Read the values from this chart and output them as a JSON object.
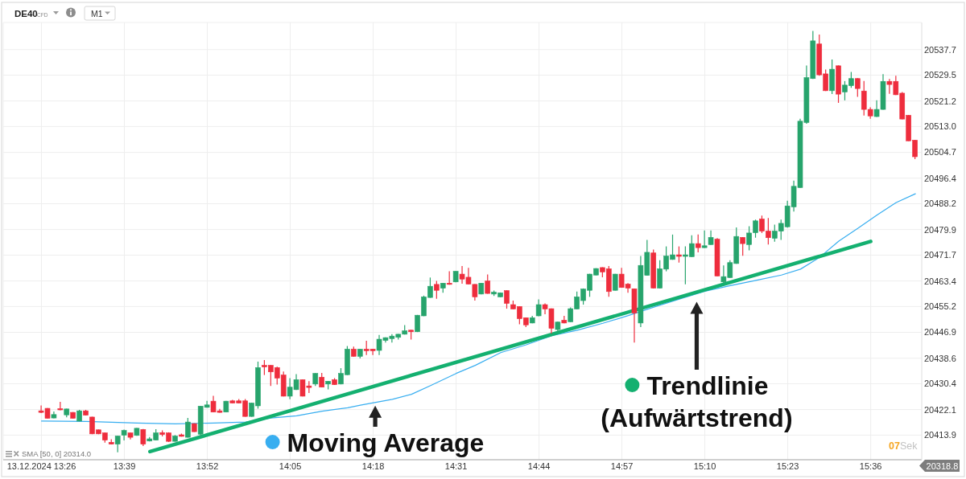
{
  "chart_data": {
    "type": "candlestick",
    "title": "DE40",
    "subtitle": "CFD",
    "x": [
      "2024-12-13T13:26",
      "2024-12-13T13:27",
      "2024-12-13T13:28",
      "2024-12-13T13:29",
      "2024-12-13T13:30",
      "2024-12-13T13:31",
      "2024-12-13T13:32",
      "2024-12-13T13:33",
      "2024-12-13T13:34",
      "2024-12-13T13:35",
      "2024-12-13T13:36",
      "2024-12-13T13:37",
      "2024-12-13T13:38",
      "2024-12-13T13:39",
      "2024-12-13T13:40",
      "2024-12-13T13:41",
      "2024-12-13T13:42",
      "2024-12-13T13:43",
      "2024-12-13T13:44",
      "2024-12-13T13:45",
      "2024-12-13T13:46",
      "2024-12-13T13:47",
      "2024-12-13T13:48",
      "2024-12-13T13:49",
      "2024-12-13T13:50",
      "2024-12-13T13:51",
      "2024-12-13T13:52",
      "2024-12-13T13:53",
      "2024-12-13T13:54",
      "2024-12-13T13:55",
      "2024-12-13T13:56",
      "2024-12-13T13:57",
      "2024-12-13T13:58",
      "2024-12-13T13:59",
      "2024-12-13T14:00",
      "2024-12-13T14:01",
      "2024-12-13T14:02",
      "2024-12-13T14:03",
      "2024-12-13T14:04",
      "2024-12-13T14:05",
      "2024-12-13T14:06",
      "2024-12-13T14:07",
      "2024-12-13T14:08",
      "2024-12-13T14:09",
      "2024-12-13T14:10",
      "2024-12-13T14:11",
      "2024-12-13T14:12",
      "2024-12-13T14:13",
      "2024-12-13T14:14",
      "2024-12-13T14:15",
      "2024-12-13T14:16",
      "2024-12-13T14:17",
      "2024-12-13T14:18",
      "2024-12-13T14:19",
      "2024-12-13T14:20",
      "2024-12-13T14:21",
      "2024-12-13T14:22",
      "2024-12-13T14:23",
      "2024-12-13T14:24",
      "2024-12-13T14:25",
      "2024-12-13T14:26",
      "2024-12-13T14:27",
      "2024-12-13T14:28",
      "2024-12-13T14:29",
      "2024-12-13T14:30",
      "2024-12-13T14:31",
      "2024-12-13T14:32",
      "2024-12-13T14:33",
      "2024-12-13T14:34",
      "2024-12-13T14:35",
      "2024-12-13T14:36",
      "2024-12-13T14:37",
      "2024-12-13T14:38",
      "2024-12-13T14:39",
      "2024-12-13T14:40",
      "2024-12-13T14:41",
      "2024-12-13T14:42",
      "2024-12-13T14:43",
      "2024-12-13T14:44",
      "2024-12-13T14:45",
      "2024-12-13T14:46",
      "2024-12-13T14:47",
      "2024-12-13T14:48",
      "2024-12-13T14:49",
      "2024-12-13T14:50",
      "2024-12-13T14:51",
      "2024-12-13T14:52",
      "2024-12-13T14:53",
      "2024-12-13T14:54",
      "2024-12-13T14:55",
      "2024-12-13T14:56",
      "2024-12-13T14:57",
      "2024-12-13T14:58",
      "2024-12-13T14:59",
      "2024-12-13T15:00",
      "2024-12-13T15:01",
      "2024-12-13T15:02",
      "2024-12-13T15:03",
      "2024-12-13T15:04",
      "2024-12-13T15:05",
      "2024-12-13T15:06",
      "2024-12-13T15:07",
      "2024-12-13T15:08",
      "2024-12-13T15:09",
      "2024-12-13T15:10",
      "2024-12-13T15:11",
      "2024-12-13T15:12",
      "2024-12-13T15:13",
      "2024-12-13T15:14",
      "2024-12-13T15:15",
      "2024-12-13T15:16",
      "2024-12-13T15:17",
      "2024-12-13T15:18",
      "2024-12-13T15:19",
      "2024-12-13T15:20",
      "2024-12-13T15:21",
      "2024-12-13T15:22",
      "2024-12-13T15:23",
      "2024-12-13T15:24",
      "2024-12-13T15:25",
      "2024-12-13T15:26",
      "2024-12-13T15:27",
      "2024-12-13T15:28",
      "2024-12-13T15:29",
      "2024-12-13T15:30",
      "2024-12-13T15:31",
      "2024-12-13T15:32",
      "2024-12-13T15:33",
      "2024-12-13T15:34",
      "2024-12-13T15:35",
      "2024-12-13T15:36",
      "2024-12-13T15:37",
      "2024-12-13T15:38",
      "2024-12-13T15:39",
      "2024-12-13T15:40",
      "2024-12-13T15:41",
      "2024-12-13T15:42",
      "2024-12-13T15:43"
    ],
    "ohlc": [
      [
        20421.7,
        20423.4,
        20421.0,
        20421.2
      ],
      [
        20422.5,
        20422.6,
        20419.2,
        20419.3
      ],
      [
        20419.4,
        20421.5,
        20419.3,
        20420.5
      ],
      [
        20422.4,
        20424.6,
        20421.9,
        20422.0
      ],
      [
        20420.4,
        20422.4,
        20419.6,
        20422.3
      ],
      [
        20421.2,
        20421.3,
        20419.2,
        20419.3
      ],
      [
        20418.4,
        20422.0,
        20418.3,
        20421.7
      ],
      [
        20421.7,
        20422.0,
        20420.2,
        20420.3
      ],
      [
        20419.7,
        20419.8,
        20414.2,
        20414.3
      ],
      [
        20415.6,
        20415.7,
        20414.2,
        20414.3
      ],
      [
        20414.6,
        20414.7,
        20411.5,
        20412.3
      ],
      [
        20411.6,
        20412.6,
        20410.9,
        20411.0
      ],
      [
        20411.0,
        20413.7,
        20408.4,
        20413.6
      ],
      [
        20413.9,
        20415.7,
        20412.2,
        20415.4
      ],
      [
        20414.6,
        20414.7,
        20412.5,
        20413.2
      ],
      [
        20413.8,
        20416.2,
        20413.7,
        20416.1
      ],
      [
        20415.7,
        20415.9,
        20410.4,
        20411.0
      ],
      [
        20412.0,
        20413.3,
        20411.9,
        20412.7
      ],
      [
        20412.3,
        20415.8,
        20412.2,
        20414.6
      ],
      [
        20414.7,
        20415.4,
        20413.5,
        20414.1
      ],
      [
        20414.6,
        20414.8,
        20411.7,
        20411.9
      ],
      [
        20411.9,
        20413.9,
        20411.8,
        20413.6
      ],
      [
        20414.0,
        20414.4,
        20413.4,
        20413.5
      ],
      [
        20413.2,
        20419.4,
        20413.1,
        20418.1
      ],
      [
        20417.6,
        20417.7,
        20414.9,
        20415.0
      ],
      [
        20414.2,
        20423.3,
        20413.5,
        20423.2
      ],
      [
        20422.8,
        20424.9,
        20422.7,
        20423.6
      ],
      [
        20424.8,
        20426.5,
        20421.2,
        20421.3
      ],
      [
        20421.7,
        20422.3,
        20421.1,
        20421.2
      ],
      [
        20421.3,
        20424.9,
        20421.2,
        20424.8
      ],
      [
        20424.9,
        20425.2,
        20424.1,
        20424.2
      ],
      [
        20424.9,
        20425.5,
        20424.1,
        20424.2
      ],
      [
        20424.9,
        20425.5,
        20419.8,
        20419.9
      ],
      [
        20419.9,
        20424.3,
        20419.8,
        20424.2
      ],
      [
        20423.3,
        20437.5,
        20422.4,
        20435.6
      ],
      [
        20436.3,
        20438.0,
        20433.2,
        20435.8
      ],
      [
        20436.3,
        20436.4,
        20429.7,
        20434.2
      ],
      [
        20435.6,
        20435.9,
        20430.1,
        20432.2
      ],
      [
        20433.2,
        20434.3,
        20426.3,
        20426.4
      ],
      [
        20426.4,
        20432.2,
        20425.4,
        20429.3
      ],
      [
        20428.5,
        20433.5,
        20428.4,
        20431.7
      ],
      [
        20431.7,
        20431.8,
        20426.3,
        20426.4
      ],
      [
        20429.7,
        20431.2,
        20427.4,
        20429.2
      ],
      [
        20430.3,
        20433.8,
        20429.7,
        20433.7
      ],
      [
        20432.5,
        20433.9,
        20429.2,
        20429.3
      ],
      [
        20430.3,
        20431.3,
        20428.6,
        20431.2
      ],
      [
        20431.7,
        20432.2,
        20430.0,
        20430.1
      ],
      [
        20430.3,
        20435.4,
        20430.2,
        20433.7
      ],
      [
        20433.3,
        20442.5,
        20433.2,
        20441.5
      ],
      [
        20441.5,
        20442.3,
        20439.1,
        20439.2
      ],
      [
        20439.2,
        20441.6,
        20438.5,
        20441.5
      ],
      [
        20441.5,
        20444.2,
        20439.6,
        20441.0
      ],
      [
        20441.5,
        20441.6,
        20439.6,
        20441.0
      ],
      [
        20441.1,
        20446.1,
        20439.6,
        20444.7
      ],
      [
        20444.3,
        20445.3,
        20443.6,
        20445.2
      ],
      [
        20444.9,
        20446.3,
        20443.6,
        20445.7
      ],
      [
        20445.3,
        20446.4,
        20444.6,
        20446.3
      ],
      [
        20446.3,
        20449.2,
        20446.2,
        20447.4
      ],
      [
        20447.6,
        20447.7,
        20444.6,
        20447.1
      ],
      [
        20447.1,
        20452.5,
        20447.0,
        20452.4
      ],
      [
        20452.2,
        20458.7,
        20452.1,
        20458.3
      ],
      [
        20458.1,
        20464.5,
        20458.0,
        20461.7
      ],
      [
        20462.3,
        20463.4,
        20457.7,
        20460.4
      ],
      [
        20461.1,
        20462.8,
        20459.6,
        20462.7
      ],
      [
        20462.7,
        20466.5,
        20462.2,
        20462.3
      ],
      [
        20463.1,
        20466.6,
        20463.0,
        20466.5
      ],
      [
        20465.6,
        20468.2,
        20462.5,
        20464.0
      ],
      [
        20464.6,
        20467.6,
        20462.3,
        20462.4
      ],
      [
        20462.3,
        20462.4,
        20457.1,
        20458.3
      ],
      [
        20459.2,
        20462.8,
        20459.1,
        20462.7
      ],
      [
        20463.4,
        20465.5,
        20459.3,
        20459.4
      ],
      [
        20459.2,
        20460.3,
        20458.6,
        20459.8
      ],
      [
        20458.3,
        20459.7,
        20458.2,
        20459.6
      ],
      [
        20460.3,
        20460.4,
        20454.5,
        20456.2
      ],
      [
        20455.8,
        20457.1,
        20454.3,
        20454.4
      ],
      [
        20455.2,
        20455.3,
        20449.5,
        20451.3
      ],
      [
        20451.6,
        20451.7,
        20448.6,
        20449.3
      ],
      [
        20449.9,
        20452.2,
        20449.8,
        20451.6
      ],
      [
        20452.2,
        20457.5,
        20452.1,
        20455.8
      ],
      [
        20455.8,
        20456.2,
        20452.7,
        20454.4
      ],
      [
        20454.5,
        20454.6,
        20446.5,
        20448.2
      ],
      [
        20447.8,
        20450.3,
        20447.0,
        20450.2
      ],
      [
        20450.8,
        20452.2,
        20449.8,
        20449.9
      ],
      [
        20450.3,
        20454.9,
        20450.2,
        20454.5
      ],
      [
        20454.4,
        20460.0,
        20454.3,
        20458.3
      ],
      [
        20457.1,
        20461.0,
        20455.8,
        20460.8
      ],
      [
        20460.4,
        20465.7,
        20458.3,
        20465.6
      ],
      [
        20465.3,
        20467.5,
        20465.2,
        20467.4
      ],
      [
        20467.7,
        20467.8,
        20464.6,
        20466.3
      ],
      [
        20467.3,
        20468.2,
        20458.3,
        20460.0
      ],
      [
        20460.4,
        20465.7,
        20460.3,
        20465.6
      ],
      [
        20465.6,
        20467.6,
        20461.2,
        20461.3
      ],
      [
        20462.4,
        20462.7,
        20459.6,
        20461.1
      ],
      [
        20460.9,
        20461.0,
        20443.6,
        20453.1
      ],
      [
        20449.9,
        20471.4,
        20448.6,
        20468.4
      ],
      [
        20465.2,
        20476.6,
        20465.1,
        20472.6
      ],
      [
        20472.4,
        20473.5,
        20461.0,
        20461.1
      ],
      [
        20461.1,
        20470.1,
        20461.0,
        20467.3
      ],
      [
        20467.2,
        20474.5,
        20466.5,
        20471.4
      ],
      [
        20470.3,
        20478.3,
        20470.2,
        20471.8
      ],
      [
        20471.8,
        20474.5,
        20469.3,
        20471.3
      ],
      [
        20471.3,
        20474.5,
        20462.3,
        20471.8
      ],
      [
        20471.2,
        20478.1,
        20471.1,
        20475.4
      ],
      [
        20475.4,
        20478.3,
        20472.6,
        20474.1
      ],
      [
        20474.1,
        20479.6,
        20474.0,
        20474.7
      ],
      [
        20475.1,
        20479.6,
        20475.0,
        20477.4
      ],
      [
        20476.8,
        20477.2,
        20464.9,
        20465.0
      ],
      [
        20463.1,
        20468.4,
        20462.5,
        20464.8
      ],
      [
        20464.5,
        20470.1,
        20464.4,
        20469.3
      ],
      [
        20469.0,
        20480.6,
        20468.9,
        20477.7
      ],
      [
        20477.4,
        20477.5,
        20471.5,
        20475.4
      ],
      [
        20475.1,
        20481.0,
        20473.2,
        20478.8
      ],
      [
        20478.9,
        20483.1,
        20477.3,
        20482.7
      ],
      [
        20483.3,
        20484.4,
        20478.8,
        20479.4
      ],
      [
        20479.4,
        20483.6,
        20475.1,
        20477.3
      ],
      [
        20477.1,
        20481.5,
        20476.0,
        20479.4
      ],
      [
        20479.4,
        20483.1,
        20476.6,
        20481.9
      ],
      [
        20480.8,
        20489.2,
        20480.5,
        20487.5
      ],
      [
        20487.2,
        20495.6,
        20485.7,
        20493.8
      ],
      [
        20493.4,
        20515.5,
        20493.3,
        20514.7
      ],
      [
        20514.3,
        20532.6,
        20513.9,
        20528.7
      ],
      [
        20528.4,
        20543.7,
        20528.3,
        20540.5
      ],
      [
        20539.5,
        20542.5,
        20529.3,
        20529.6
      ],
      [
        20529.9,
        20531.3,
        20524.4,
        20524.5
      ],
      [
        20524.5,
        20534.5,
        20523.4,
        20531.4
      ],
      [
        20532.5,
        20532.6,
        20520.6,
        20523.4
      ],
      [
        20524.1,
        20527.6,
        20521.4,
        20526.3
      ],
      [
        20526.1,
        20530.5,
        20525.4,
        20528.4
      ],
      [
        20528.4,
        20528.5,
        20522.5,
        20525.2
      ],
      [
        20524.4,
        20527.6,
        20516.5,
        20518.5
      ],
      [
        20518.5,
        20519.2,
        20515.5,
        20516.4
      ],
      [
        20516.2,
        20521.4,
        20516.1,
        20518.5
      ],
      [
        20518.5,
        20529.8,
        20518.4,
        20527.5
      ],
      [
        20527.5,
        20528.3,
        20523.5,
        20526.5
      ],
      [
        20527.5,
        20529.3,
        20523.1,
        20523.2
      ],
      [
        20523.7,
        20524.1,
        20515.3,
        20515.4
      ],
      [
        20516.6,
        20516.7,
        20508.3,
        20508.4
      ],
      [
        20508.6,
        20508.7,
        20502.5,
        20503.3
      ]
    ],
    "colors": [
      "#ee2d3d",
      "#ee2d3d",
      "#27a46c",
      "#ee2d3d",
      "#27a46c",
      "#ee2d3d",
      "#27a46c",
      "#ee2d3d",
      "#ee2d3d",
      "#ee2d3d",
      "#ee2d3d",
      "#ee2d3d",
      "#27a46c",
      "#27a46c",
      "#ee2d3d",
      "#27a46c",
      "#ee2d3d",
      "#27a46c",
      "#27a46c",
      "#ee2d3d",
      "#ee2d3d",
      "#27a46c",
      "#ee2d3d",
      "#27a46c",
      "#ee2d3d",
      "#27a46c",
      "#27a46c",
      "#ee2d3d",
      "#ee2d3d",
      "#27a46c",
      "#ee2d3d",
      "#ee2d3d",
      "#ee2d3d",
      "#27a46c",
      "#27a46c",
      "#ee2d3d",
      "#ee2d3d",
      "#ee2d3d",
      "#ee2d3d",
      "#27a46c",
      "#27a46c",
      "#ee2d3d",
      "#ee2d3d",
      "#27a46c",
      "#ee2d3d",
      "#27a46c",
      "#ee2d3d",
      "#27a46c",
      "#27a46c",
      "#ee2d3d",
      "#27a46c",
      "#ee2d3d",
      "#ee2d3d",
      "#27a46c",
      "#27a46c",
      "#27a46c",
      "#27a46c",
      "#27a46c",
      "#ee2d3d",
      "#27a46c",
      "#27a46c",
      "#27a46c",
      "#ee2d3d",
      "#27a46c",
      "#ee2d3d",
      "#27a46c",
      "#ee2d3d",
      "#ee2d3d",
      "#ee2d3d",
      "#27a46c",
      "#ee2d3d",
      "#27a46c",
      "#27a46c",
      "#ee2d3d",
      "#ee2d3d",
      "#ee2d3d",
      "#ee2d3d",
      "#27a46c",
      "#27a46c",
      "#ee2d3d",
      "#ee2d3d",
      "#27a46c",
      "#ee2d3d",
      "#27a46c",
      "#27a46c",
      "#27a46c",
      "#27a46c",
      "#27a46c",
      "#ee2d3d",
      "#ee2d3d",
      "#27a46c",
      "#ee2d3d",
      "#ee2d3d",
      "#ee2d3d",
      "#27a46c",
      "#27a46c",
      "#ee2d3d",
      "#27a46c",
      "#27a46c",
      "#27a46c",
      "#ee2d3d",
      "#27a46c",
      "#27a46c",
      "#ee2d3d",
      "#27a46c",
      "#27a46c",
      "#ee2d3d",
      "#27a46c",
      "#27a46c",
      "#27a46c",
      "#ee2d3d",
      "#27a46c",
      "#27a46c",
      "#ee2d3d",
      "#ee2d3d",
      "#27a46c",
      "#27a46c",
      "#27a46c",
      "#27a46c",
      "#27a46c",
      "#27a46c",
      "#27a46c",
      "#ee2d3d",
      "#ee2d3d",
      "#27a46c",
      "#ee2d3d",
      "#27a46c",
      "#27a46c",
      "#ee2d3d",
      "#ee2d3d",
      "#ee2d3d",
      "#27a46c",
      "#27a46c",
      "#ee2d3d",
      "#ee2d3d",
      "#ee2d3d",
      "#ee2d3d",
      "#ee2d3d"
    ],
    "series": [
      {
        "type": "line",
        "name": "Moving Average",
        "color": "#38aef0",
        "x": [
          "2024-12-13T13:26",
          "2024-12-13T13:33",
          "2024-12-13T13:41",
          "2024-12-13T13:47",
          "2024-12-13T13:53",
          "2024-12-13T13:58",
          "2024-12-13T14:02",
          "2024-12-13T14:06",
          "2024-12-13T14:10",
          "2024-12-13T14:14",
          "2024-12-13T14:16",
          "2024-12-13T14:21",
          "2024-12-13T14:24",
          "2024-12-13T14:27",
          "2024-12-13T14:31",
          "2024-12-13T14:34",
          "2024-12-13T14:38",
          "2024-12-13T14:42",
          "2024-12-13T14:46",
          "2024-12-13T14:50",
          "2024-12-13T14:54",
          "2024-12-13T14:58",
          "2024-12-13T15:02",
          "2024-12-13T15:06",
          "2024-12-13T15:10",
          "2024-12-13T15:14",
          "2024-12-13T15:18",
          "2024-12-13T15:22",
          "2024-12-13T15:25",
          "2024-12-13T15:28",
          "2024-12-13T15:31",
          "2024-12-13T15:34",
          "2024-12-13T15:37",
          "2024-12-13T15:40",
          "2024-12-13T15:43"
        ],
        "values": [
          20418.4,
          20418.3,
          20417.8,
          20417.5,
          20417.8,
          20418.1,
          20419.4,
          20420.1,
          20421.6,
          20422.7,
          20423.5,
          20425.4,
          20427.0,
          20429.8,
          20433.7,
          20436.3,
          20440.4,
          20442.9,
          20445.8,
          20447.6,
          20449.8,
          20452.3,
          20455.0,
          20457.6,
          20460.1,
          20461.9,
          20463.6,
          20465.3,
          20467.2,
          20471.0,
          20476.2,
          20480.3,
          20484.6,
          20488.6,
          20491.4
        ]
      },
      {
        "type": "line",
        "name": "Trendlinie (Aufwärtstrend)",
        "color": "#14b070",
        "x": [
          "2024-12-13T13:43",
          "2024-12-13T15:36"
        ],
        "values": [
          20408.6,
          20476.1
        ]
      }
    ],
    "xlim": [
      "2024-12-13T13:20",
      "2024-12-13T15:44"
    ],
    "xticks": [
      {
        "value": "2024-12-13T13:26",
        "label": "13.12.2024 13:26"
      },
      {
        "value": "2024-12-13T13:39",
        "label": "13:39"
      },
      {
        "value": "2024-12-13T13:52",
        "label": "13:52"
      },
      {
        "value": "2024-12-13T14:05",
        "label": "14:05"
      },
      {
        "value": "2024-12-13T14:18",
        "label": "14:18"
      },
      {
        "value": "2024-12-13T14:31",
        "label": "14:31"
      },
      {
        "value": "2024-12-13T14:44",
        "label": "14:44"
      },
      {
        "value": "2024-12-13T14:57",
        "label": "14:57"
      },
      {
        "value": "2024-12-13T15:10",
        "label": "15:10"
      },
      {
        "value": "2024-12-13T15:23",
        "label": "15:23"
      },
      {
        "value": "2024-12-13T15:36",
        "label": "15:36"
      }
    ],
    "ylim": [
      20406.0,
      20546.4
    ],
    "yticks": [
      20413.9,
      20422.1,
      20430.4,
      20438.6,
      20446.9,
      20455.2,
      20463.4,
      20471.7,
      20479.9,
      20488.2,
      20496.4,
      20504.7,
      {
        "value": 20513.0,
        "label": "20513.0"
      },
      20521.2,
      20529.5,
      20537.7
    ],
    "grid": true,
    "legend": "bottom",
    "marker": "none",
    "annotations": [
      "M1",
      "SMA [50, 0] 20314.0",
      "07Sek",
      "20318.8"
    ]
  }
}
